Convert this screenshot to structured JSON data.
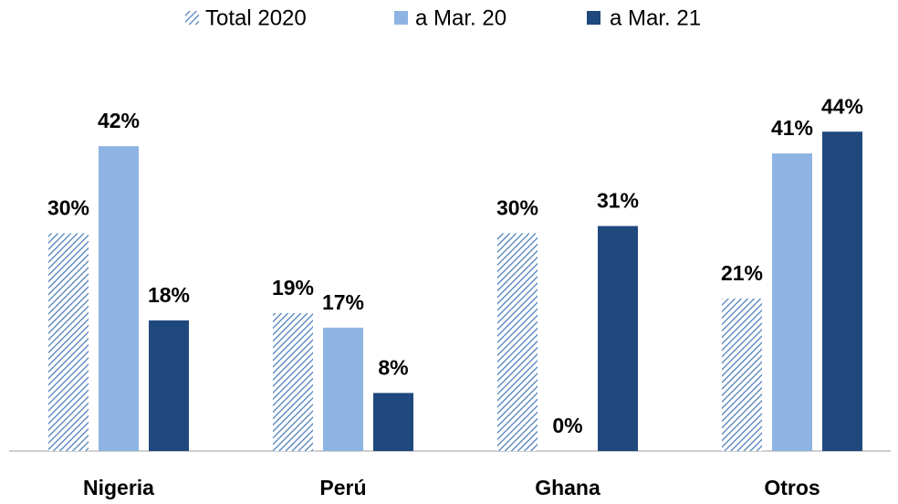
{
  "chart_data": {
    "type": "bar",
    "categories": [
      "Nigeria",
      "Perú",
      "Ghana",
      "Otros"
    ],
    "series": [
      {
        "name": "Total 2020",
        "color": "#4f81bd",
        "pattern": "hatch",
        "values": [
          30,
          19,
          30,
          21
        ],
        "value_labels": [
          "30%",
          "19%",
          "30%",
          "21%"
        ]
      },
      {
        "name": "a Mar. 20",
        "color": "#8eb4e3",
        "values": [
          42,
          17,
          0,
          41
        ],
        "value_labels": [
          "42%",
          "17%",
          "0%",
          "41%"
        ]
      },
      {
        "name": "a Mar. 21",
        "color": "#1f497d",
        "values": [
          18,
          8,
          31,
          44
        ],
        "value_labels": [
          "18%",
          "8%",
          "31%",
          "44%"
        ]
      }
    ],
    "legend": "top"
  }
}
